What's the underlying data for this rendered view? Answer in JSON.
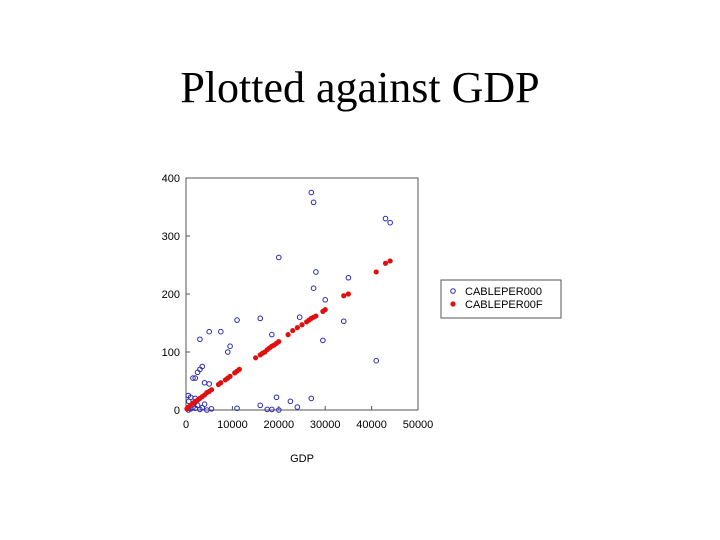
{
  "slide": {
    "title": "Plotted against GDP"
  },
  "chart_data": {
    "type": "scatter",
    "title": "",
    "xlabel": "GDP",
    "ylabel": "",
    "xlim": [
      0,
      50000
    ],
    "ylim": [
      0,
      400
    ],
    "x_ticks": [
      0,
      10000,
      20000,
      30000,
      40000,
      50000
    ],
    "y_ticks": [
      0,
      100,
      200,
      300,
      400
    ],
    "grid": false,
    "legend_position": "right",
    "series": [
      {
        "name": "CABLEPER000",
        "color": "#2a2ab4",
        "marker": "open-circle",
        "points": [
          [
            27000,
            375
          ],
          [
            27500,
            358
          ],
          [
            43000,
            330
          ],
          [
            44000,
            323
          ],
          [
            20000,
            263
          ],
          [
            28000,
            238
          ],
          [
            35000,
            228
          ],
          [
            27500,
            210
          ],
          [
            30000,
            190
          ],
          [
            24500,
            160
          ],
          [
            16000,
            158
          ],
          [
            11000,
            155
          ],
          [
            34000,
            153
          ],
          [
            5000,
            135
          ],
          [
            7500,
            135
          ],
          [
            18500,
            130
          ],
          [
            3000,
            122
          ],
          [
            29500,
            120
          ],
          [
            9500,
            110
          ],
          [
            9000,
            100
          ],
          [
            41000,
            85
          ],
          [
            3500,
            75
          ],
          [
            3000,
            70
          ],
          [
            2500,
            65
          ],
          [
            1500,
            55
          ],
          [
            2000,
            55
          ],
          [
            4000,
            47
          ],
          [
            5000,
            45
          ],
          [
            500,
            25
          ],
          [
            1000,
            22
          ],
          [
            2000,
            20
          ],
          [
            19500,
            22
          ],
          [
            22500,
            15
          ],
          [
            27000,
            20
          ],
          [
            16000,
            8
          ],
          [
            24000,
            5
          ],
          [
            11000,
            3
          ],
          [
            5500,
            2
          ],
          [
            17500,
            1
          ],
          [
            18500,
            1
          ],
          [
            20000,
            0
          ],
          [
            1000,
            2
          ],
          [
            1500,
            5
          ],
          [
            2000,
            3
          ],
          [
            2500,
            8
          ],
          [
            3000,
            1
          ],
          [
            3500,
            4
          ],
          [
            4000,
            10
          ],
          [
            4500,
            0
          ],
          [
            500,
            0
          ],
          [
            1800,
            12
          ],
          [
            600,
            15
          ]
        ]
      },
      {
        "name": "CABLEPER00F",
        "color": "#e01010",
        "marker": "filled-circle",
        "points": [
          [
            44000,
            257
          ],
          [
            43000,
            253
          ],
          [
            41000,
            238
          ],
          [
            35000,
            200
          ],
          [
            34000,
            197
          ],
          [
            30000,
            173
          ],
          [
            29500,
            170
          ],
          [
            28000,
            162
          ],
          [
            27500,
            160
          ],
          [
            27000,
            158
          ],
          [
            26500,
            155
          ],
          [
            26000,
            152
          ],
          [
            25000,
            147
          ],
          [
            24000,
            142
          ],
          [
            23000,
            137
          ],
          [
            22000,
            130
          ],
          [
            20000,
            118
          ],
          [
            19500,
            115
          ],
          [
            19000,
            112
          ],
          [
            18500,
            110
          ],
          [
            18000,
            107
          ],
          [
            17500,
            104
          ],
          [
            17000,
            100
          ],
          [
            16500,
            98
          ],
          [
            16000,
            95
          ],
          [
            15000,
            90
          ],
          [
            11500,
            70
          ],
          [
            11000,
            67
          ],
          [
            10500,
            64
          ],
          [
            9500,
            58
          ],
          [
            9000,
            55
          ],
          [
            8500,
            52
          ],
          [
            7500,
            47
          ],
          [
            7000,
            44
          ],
          [
            5500,
            35
          ],
          [
            5000,
            32
          ],
          [
            4500,
            30
          ],
          [
            4000,
            26
          ],
          [
            3500,
            23
          ],
          [
            3000,
            20
          ],
          [
            2500,
            17
          ],
          [
            2000,
            15
          ],
          [
            1500,
            12
          ],
          [
            1000,
            8
          ],
          [
            500,
            5
          ],
          [
            200,
            2
          ]
        ]
      }
    ]
  }
}
